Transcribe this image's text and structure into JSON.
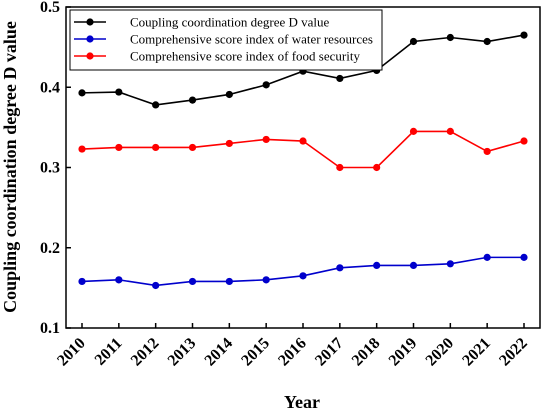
{
  "chart_data": {
    "type": "line",
    "categories": [
      "2010",
      "2011",
      "2012",
      "2013",
      "2014",
      "2015",
      "2016",
      "2017",
      "2018",
      "2019",
      "2020",
      "2021",
      "2022"
    ],
    "series": [
      {
        "name": "Coupling coordination degree D value",
        "color": "#000000",
        "values": [
          0.393,
          0.394,
          0.378,
          0.384,
          0.391,
          0.403,
          0.42,
          0.411,
          0.421,
          0.457,
          0.462,
          0.457,
          0.465
        ]
      },
      {
        "name": "Comprehensive score index of water resources",
        "color": "#0000cc",
        "values": [
          0.158,
          0.16,
          0.153,
          0.158,
          0.158,
          0.16,
          0.165,
          0.175,
          0.178,
          0.178,
          0.18,
          0.188,
          0.188
        ]
      },
      {
        "name": "Comprehensive score index of food security",
        "color": "#ff0000",
        "values": [
          0.323,
          0.325,
          0.325,
          0.325,
          0.33,
          0.335,
          0.333,
          0.3,
          0.3,
          0.345,
          0.345,
          0.32,
          0.333
        ]
      }
    ],
    "xlabel": "Year",
    "ylabel": "Coupling coordination degree D value",
    "ylim": [
      0.1,
      0.5
    ],
    "yticks": [
      "0.1",
      "0.2",
      "0.3",
      "0.4",
      "0.5"
    ],
    "grid": false,
    "legend_position": "top-left"
  }
}
